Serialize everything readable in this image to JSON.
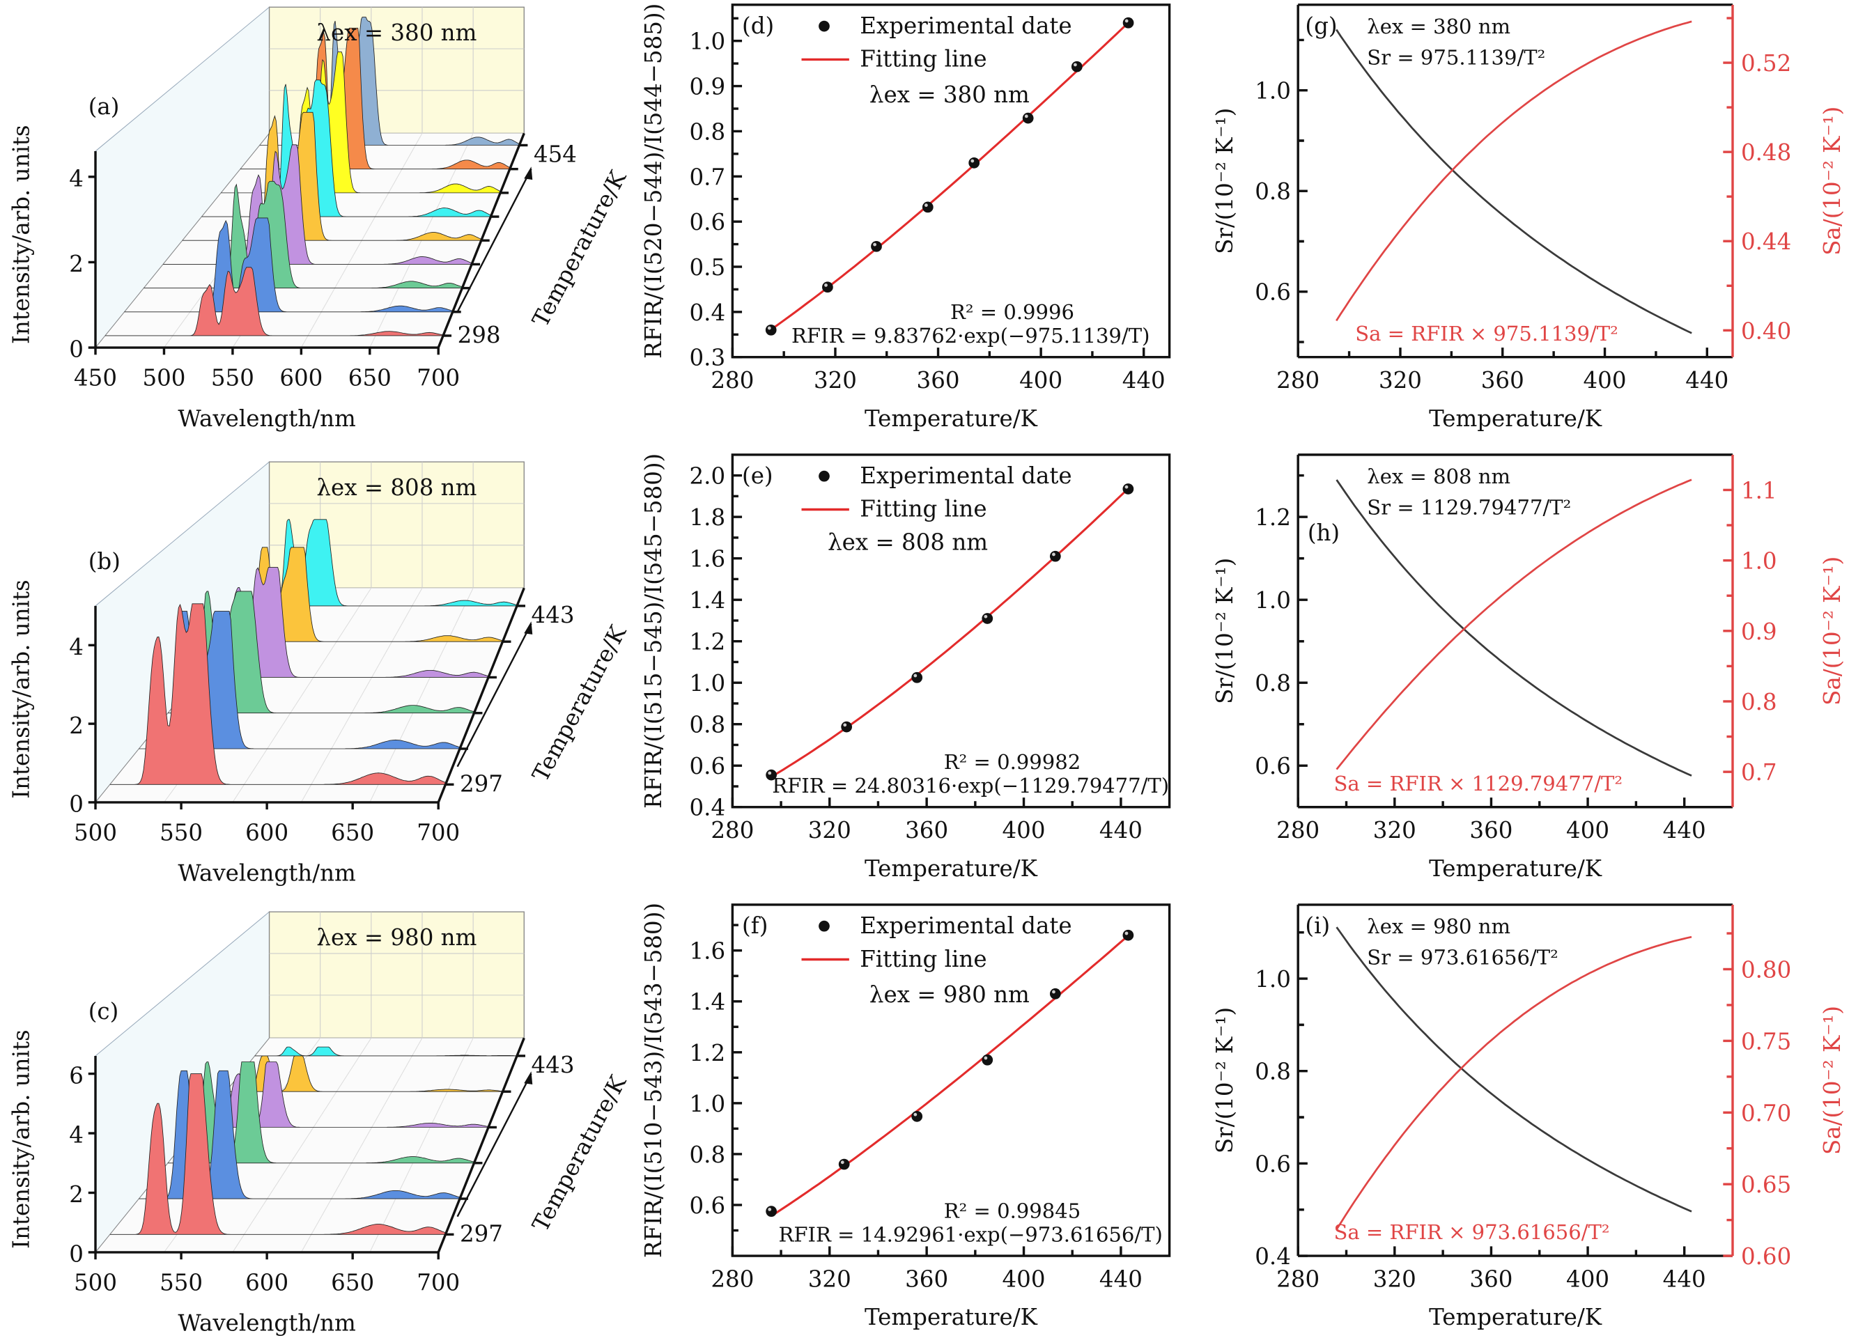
{
  "colors": {
    "fit_line": "#e32b2b",
    "sa_curve": "#e04545",
    "sr_curve": "#3a3a3a",
    "point": "#111111",
    "back_wall": "#fdfbdc",
    "side_wall": "#f2f9fb",
    "floor": "#fbfbfb",
    "spectra": [
      "#f07373",
      "#5b8fe0",
      "#6ccb96",
      "#c192e0",
      "#fbc43c",
      "#3ef2f2",
      "#ffff22",
      "#f58a4a",
      "#8fb0d3"
    ]
  },
  "chart_data": [
    {
      "id": "a",
      "type": "area",
      "panel_label": "(a)",
      "title": "λex = 380 nm",
      "xlabel": "Wavelength/nm",
      "ylabel": "Intensity/arb. units",
      "zlabel": "Temperature/K",
      "xlim": [
        450,
        700
      ],
      "xticks": [
        "450",
        "500",
        "550",
        "600",
        "650",
        "700"
      ],
      "ylim": [
        0,
        4.6
      ],
      "yticks": [
        "0",
        "2",
        "4"
      ],
      "z_first_label": "298",
      "z_last_label": "454",
      "series_count": 9,
      "series_peaks": [
        1.6,
        2.2,
        2.5,
        2.8,
        3.0,
        3.2,
        3.3,
        3.3,
        3.0
      ],
      "peak_centers_nm": [
        522,
        528,
        541,
        549,
        556
      ]
    },
    {
      "id": "b",
      "type": "area",
      "panel_label": "(b)",
      "title": "λex = 808 nm",
      "xlabel": "Wavelength/nm",
      "ylabel": "Intensity/arb. units",
      "zlabel": "Temperature/K",
      "xlim": [
        500,
        700
      ],
      "xticks": [
        "500",
        "550",
        "600",
        "650",
        "700"
      ],
      "ylim": [
        0,
        5
      ],
      "yticks": [
        "0",
        "2",
        "4"
      ],
      "z_first_label": "297",
      "z_last_label": "443",
      "series_count": 6,
      "series_peaks": [
        4.6,
        3.5,
        3.1,
        2.8,
        2.4,
        2.2
      ],
      "peak_centers_nm": [
        525,
        530,
        541,
        548,
        553
      ]
    },
    {
      "id": "c",
      "type": "area",
      "panel_label": "(c)",
      "title": "λex = 980 nm",
      "xlabel": "Wavelength/nm",
      "ylabel": "Intensity/arb. units",
      "zlabel": "Temperature/K",
      "xlim": [
        500,
        700
      ],
      "xticks": [
        "500",
        "550",
        "600",
        "650",
        "700"
      ],
      "ylim": [
        0,
        6.6
      ],
      "yticks": [
        "0",
        "2",
        "4",
        "6"
      ],
      "z_first_label": "297",
      "z_last_label": "443",
      "series_count": 6,
      "series_peaks": [
        5.4,
        4.3,
        3.4,
        2.2,
        1.2,
        0.3
      ],
      "peak_centers_nm": [
        525,
        530,
        549,
        553
      ]
    },
    {
      "id": "d",
      "type": "scatter",
      "panel_label": "(d)",
      "xlabel": "Temperature/K",
      "ylabel": "RFIR/(I(520−544)/I(544−585))",
      "xlim": [
        280,
        450
      ],
      "xticks": [
        280,
        320,
        360,
        400,
        440
      ],
      "ylim": [
        0.3,
        1.08
      ],
      "yticks": [
        "0.3",
        "0.4",
        "0.5",
        "0.6",
        "0.7",
        "0.8",
        "0.9",
        "1.0"
      ],
      "ytick_values": [
        0.3,
        0.4,
        0.5,
        0.6,
        0.7,
        0.8,
        0.9,
        1.0
      ],
      "legend": [
        "Experimental date",
        "Fitting line"
      ],
      "legend_position": "top",
      "annotations": {
        "excitation": "λex = 380 nm",
        "r2": "R² = 0.9996",
        "equation": "RFIR = 9.83762·exp(−975.1139/T)"
      },
      "fit": {
        "A": 9.83762,
        "B": 975.1139
      },
      "x": [
        295,
        317,
        336,
        356,
        374,
        395,
        414,
        434
      ],
      "y": [
        0.36,
        0.455,
        0.545,
        0.632,
        0.73,
        0.829,
        0.943,
        1.04
      ]
    },
    {
      "id": "e",
      "type": "scatter",
      "panel_label": "(e)",
      "xlabel": "Temperature/K",
      "ylabel": "RFIR/(I(515−545)/I(545−580))",
      "xlim": [
        280,
        460
      ],
      "xticks": [
        280,
        320,
        360,
        400,
        440
      ],
      "ylim": [
        0.4,
        2.1
      ],
      "yticks": [
        "0.4",
        "0.6",
        "0.8",
        "1.0",
        "1.2",
        "1.4",
        "1.6",
        "1.8",
        "2.0"
      ],
      "ytick_values": [
        0.4,
        0.6,
        0.8,
        1.0,
        1.2,
        1.4,
        1.6,
        1.8,
        2.0
      ],
      "legend": [
        "Experimental date",
        "Fitting line"
      ],
      "legend_position": "top",
      "annotations": {
        "excitation": "λex = 808 nm",
        "r2": "R² = 0.99982",
        "equation": "RFIR = 24.80316·exp(−1129.79477/T)"
      },
      "fit": {
        "A": 24.80316,
        "B": 1129.79477
      },
      "x": [
        296,
        327,
        356,
        385,
        413,
        443
      ],
      "y": [
        0.555,
        0.787,
        1.025,
        1.31,
        1.61,
        1.935
      ]
    },
    {
      "id": "f",
      "type": "scatter",
      "panel_label": "(f)",
      "xlabel": "Temperature/K",
      "ylabel": "RFIR/(I(510−543)/I(543−580))",
      "xlim": [
        280,
        460
      ],
      "xticks": [
        280,
        320,
        360,
        400,
        440
      ],
      "ylim": [
        0.4,
        1.78
      ],
      "yticks": [
        "0.6",
        "0.8",
        "1.0",
        "1.2",
        "1.4",
        "1.6"
      ],
      "ytick_values": [
        0.6,
        0.8,
        1.0,
        1.2,
        1.4,
        1.6
      ],
      "legend": [
        "Experimental date",
        "Fitting line"
      ],
      "legend_position": "top",
      "annotations": {
        "excitation": "λex = 980 nm",
        "r2": "R² = 0.99845",
        "equation": "RFIR = 14.92961·exp(−973.61656/T)"
      },
      "fit": {
        "A": 14.92961,
        "B": 973.61656
      },
      "x": [
        296,
        326,
        356,
        385,
        413,
        443
      ],
      "y": [
        0.575,
        0.76,
        0.948,
        1.17,
        1.43,
        1.66
      ]
    },
    {
      "id": "g",
      "type": "line",
      "panel_label": "(g)",
      "xlabel": "Temperature/K",
      "ylabel": "Sr/(10⁻² K⁻¹)",
      "y2label": "Sa/(10⁻² K⁻¹)",
      "xlim": [
        280,
        450
      ],
      "xticks": [
        280,
        320,
        360,
        400,
        440
      ],
      "ylim": [
        0.47,
        1.17
      ],
      "yticks": [
        "0.6",
        "0.8",
        "1.0"
      ],
      "ytick_values": [
        0.6,
        0.8,
        1.0
      ],
      "y2lim": [
        0.388,
        0.546
      ],
      "y2ticks": [
        "0.40",
        "0.44",
        "0.48",
        "0.52"
      ],
      "y2tick_values": [
        0.4,
        0.44,
        0.48,
        0.52
      ],
      "annotations": {
        "excitation": "λex = 380 nm",
        "sr_eq": "Sr = 975.1139/T²",
        "sa_eq": "Sa = RFIR × 975.1139/T²"
      },
      "fit": {
        "A": 9.83762,
        "B": 975.1139
      },
      "t_range": [
        295,
        434
      ],
      "series": [
        {
          "name": "Sr",
          "axis": "left"
        },
        {
          "name": "Sa",
          "axis": "right"
        }
      ]
    },
    {
      "id": "h",
      "type": "line",
      "panel_label": "(h)",
      "xlabel": "Temperature/K",
      "ylabel": "Sr/(10⁻² K⁻¹)",
      "y2label": "Sa/(10⁻² K⁻¹)",
      "xlim": [
        280,
        460
      ],
      "xticks": [
        280,
        320,
        360,
        400,
        440
      ],
      "ylim": [
        0.5,
        1.35
      ],
      "yticks": [
        "0.6",
        "0.8",
        "1.0",
        "1.2"
      ],
      "ytick_values": [
        0.6,
        0.8,
        1.0,
        1.2
      ],
      "y2lim": [
        0.65,
        1.15
      ],
      "y2ticks": [
        "0.7",
        "0.8",
        "0.9",
        "1.0",
        "1.1"
      ],
      "y2tick_values": [
        0.7,
        0.8,
        0.9,
        1.0,
        1.1
      ],
      "annotations": {
        "excitation": "λex = 808 nm",
        "sr_eq": "Sr = 1129.79477/T²",
        "sa_eq": "Sa = RFIR × 1129.79477/T²"
      },
      "fit": {
        "A": 24.80316,
        "B": 1129.79477
      },
      "t_range": [
        296,
        443
      ],
      "series": [
        {
          "name": "Sr",
          "axis": "left"
        },
        {
          "name": "Sa",
          "axis": "right"
        }
      ]
    },
    {
      "id": "i",
      "type": "line",
      "panel_label": "(i)",
      "xlabel": "Temperature/K",
      "ylabel": "Sr/(10⁻² K⁻¹)",
      "y2label": "Sa/(10⁻² K⁻¹)",
      "xlim": [
        280,
        460
      ],
      "xticks": [
        280,
        320,
        360,
        400,
        440
      ],
      "ylim": [
        0.4,
        1.16
      ],
      "yticks": [
        "0.4",
        "0.6",
        "0.8",
        "1.0"
      ],
      "ytick_values": [
        0.4,
        0.6,
        0.8,
        1.0
      ],
      "y2lim": [
        0.6,
        0.845
      ],
      "y2ticks": [
        "0.60",
        "0.65",
        "0.70",
        "0.75",
        "0.80"
      ],
      "y2tick_values": [
        0.6,
        0.65,
        0.7,
        0.75,
        0.8
      ],
      "annotations": {
        "excitation": "λex = 980 nm",
        "sr_eq": "Sr = 973.61656/T²",
        "sa_eq": "Sa = RFIR × 973.61656/T²"
      },
      "fit": {
        "A": 14.92961,
        "B": 973.61656
      },
      "t_range": [
        296,
        443
      ],
      "series": [
        {
          "name": "Sr",
          "axis": "left"
        },
        {
          "name": "Sa",
          "axis": "right"
        }
      ]
    }
  ]
}
